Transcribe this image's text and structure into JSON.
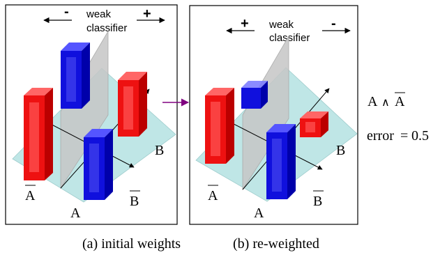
{
  "panels": {
    "initial": {
      "sign_left": "-",
      "sign_right": "+",
      "classifier_line1": "weak",
      "classifier_line2": "classifier",
      "label_b": "B",
      "label_not_a": "A",
      "label_a": "A",
      "label_not_b": "B",
      "caption": "(a) initial weights"
    },
    "reweighted": {
      "sign_left": "+",
      "sign_right": "-",
      "classifier_line1": "weak",
      "classifier_line2": "classifier",
      "label_b": "B",
      "label_not_a": "A",
      "label_a": "A",
      "label_not_b": "B",
      "caption": "(b) re-weighted"
    }
  },
  "side_text": {
    "expression_a": "A",
    "expression_op": "∧",
    "expression_not_a": "A",
    "error_label": "error",
    "error_eq": "=",
    "error_value": "0.5"
  },
  "colors": {
    "red": "#ee1111",
    "blue": "#1010dd",
    "plane": "#bfe6e6",
    "separator": "#cccccc",
    "arrow": "#800080"
  },
  "icons": [
    "left-arrow-icon",
    "right-arrow-icon",
    "transition-arrow-icon"
  ]
}
